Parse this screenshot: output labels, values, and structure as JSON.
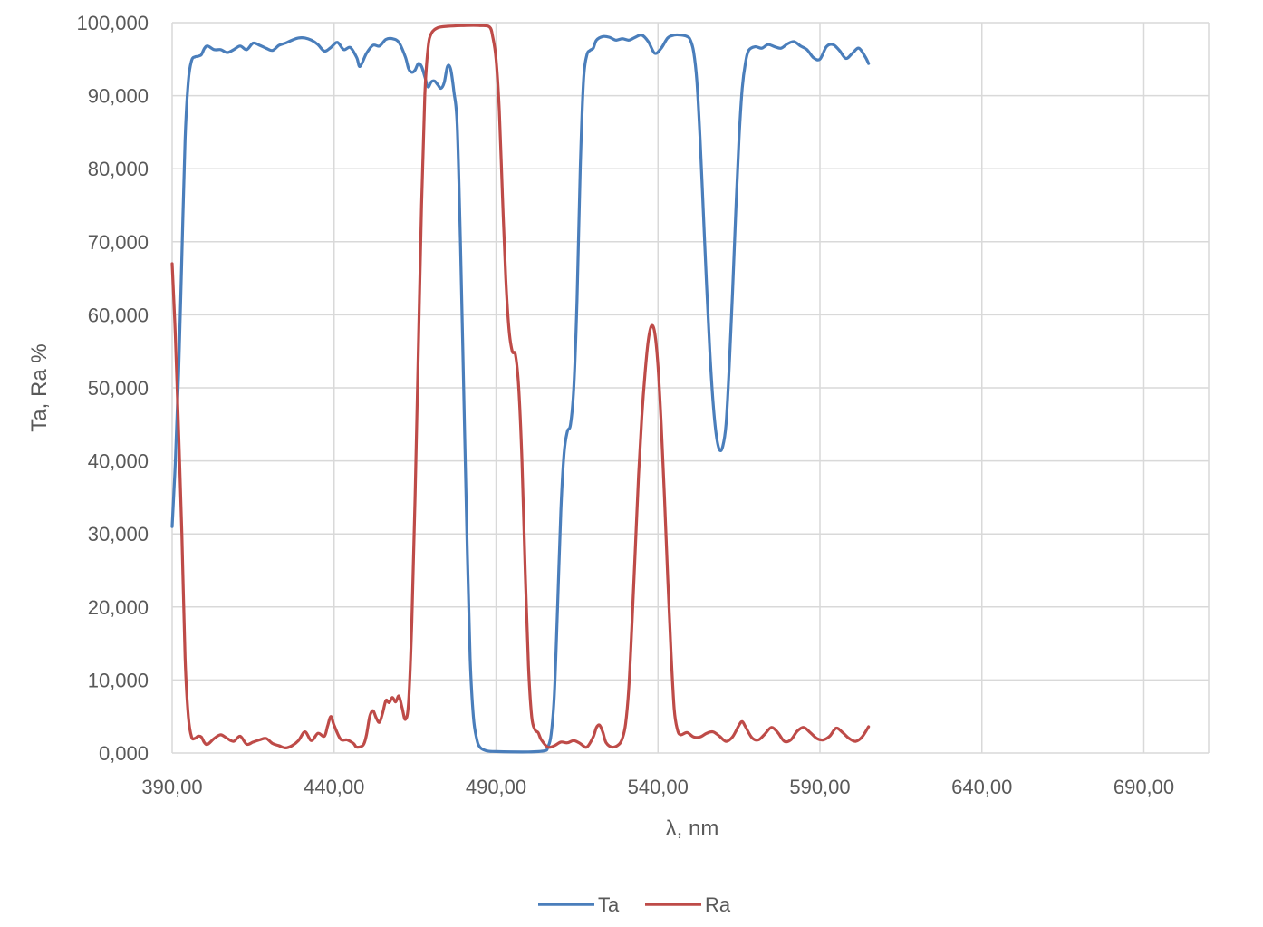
{
  "chart_data": {
    "type": "line",
    "title": "",
    "xlabel": "λ, nm",
    "ylabel": "Ta, Ra %",
    "xlim": [
      390,
      710
    ],
    "ylim": [
      0,
      100
    ],
    "x_ticks": [
      {
        "value": 390,
        "label": "390,00"
      },
      {
        "value": 440,
        "label": "440,00"
      },
      {
        "value": 490,
        "label": "490,00"
      },
      {
        "value": 540,
        "label": "540,00"
      },
      {
        "value": 590,
        "label": "590,00"
      },
      {
        "value": 640,
        "label": "640,00"
      },
      {
        "value": 690,
        "label": "690,00"
      }
    ],
    "y_ticks": [
      {
        "value": 0,
        "label": "0,000"
      },
      {
        "value": 10,
        "label": "10,000"
      },
      {
        "value": 20,
        "label": "20,000"
      },
      {
        "value": 30,
        "label": "30,000"
      },
      {
        "value": 40,
        "label": "40,000"
      },
      {
        "value": 50,
        "label": "50,000"
      },
      {
        "value": 60,
        "label": "60,000"
      },
      {
        "value": 70,
        "label": "70,000"
      },
      {
        "value": 80,
        "label": "80,000"
      },
      {
        "value": 90,
        "label": "90,000"
      },
      {
        "value": 100,
        "label": "100,000"
      }
    ],
    "grid": true,
    "legend_position": "bottom",
    "series": [
      {
        "name": "Ta",
        "color": "#4a7ebb",
        "points": [
          [
            390,
            31
          ],
          [
            391,
            40
          ],
          [
            392,
            52
          ],
          [
            393,
            68
          ],
          [
            394,
            84
          ],
          [
            395,
            92
          ],
          [
            396,
            94.8
          ],
          [
            397,
            95.3
          ],
          [
            398,
            95.4
          ],
          [
            399,
            95.6
          ],
          [
            400,
            96.5
          ],
          [
            401,
            96.8
          ],
          [
            403,
            96.3
          ],
          [
            405,
            96.3
          ],
          [
            407,
            95.9
          ],
          [
            409,
            96.3
          ],
          [
            411,
            96.8
          ],
          [
            413,
            96.3
          ],
          [
            415,
            97.2
          ],
          [
            417,
            96.9
          ],
          [
            419,
            96.5
          ],
          [
            421,
            96.2
          ],
          [
            423,
            96.9
          ],
          [
            425,
            97.2
          ],
          [
            427,
            97.6
          ],
          [
            429,
            97.9
          ],
          [
            431,
            97.9
          ],
          [
            433,
            97.6
          ],
          [
            435,
            97.0
          ],
          [
            437,
            96.1
          ],
          [
            439,
            96.6
          ],
          [
            441,
            97.3
          ],
          [
            443,
            96.3
          ],
          [
            445,
            96.6
          ],
          [
            447,
            95.2
          ],
          [
            448,
            94.0
          ],
          [
            450,
            95.8
          ],
          [
            452,
            96.9
          ],
          [
            454,
            96.8
          ],
          [
            456,
            97.7
          ],
          [
            458,
            97.8
          ],
          [
            460,
            97.3
          ],
          [
            462,
            95.3
          ],
          [
            463,
            93.7
          ],
          [
            464,
            93.2
          ],
          [
            465,
            93.5
          ],
          [
            466,
            94.4
          ],
          [
            467,
            94.0
          ],
          [
            468,
            92.6
          ],
          [
            469,
            91.2
          ],
          [
            470,
            91.9
          ],
          [
            471,
            92.0
          ],
          [
            472,
            91.5
          ],
          [
            473,
            91.0
          ],
          [
            474,
            91.8
          ],
          [
            475,
            94.0
          ],
          [
            476,
            93.6
          ],
          [
            477,
            90.5
          ],
          [
            478,
            86
          ],
          [
            479,
            70
          ],
          [
            480,
            50
          ],
          [
            481,
            30
          ],
          [
            482,
            13
          ],
          [
            483,
            5
          ],
          [
            484,
            2
          ],
          [
            485,
            0.8
          ],
          [
            487,
            0.3
          ],
          [
            490,
            0.2
          ],
          [
            500,
            0.15
          ],
          [
            505,
            0.3
          ],
          [
            506,
            0.8
          ],
          [
            507,
            2.5
          ],
          [
            508,
            8
          ],
          [
            509,
            20
          ],
          [
            510,
            33
          ],
          [
            511,
            41
          ],
          [
            512,
            44
          ],
          [
            513,
            45
          ],
          [
            514,
            50
          ],
          [
            515,
            62
          ],
          [
            516,
            80
          ],
          [
            517,
            92
          ],
          [
            518,
            95.5
          ],
          [
            519,
            96.2
          ],
          [
            520,
            96.5
          ],
          [
            521,
            97.6
          ],
          [
            523,
            98.1
          ],
          [
            525,
            98.0
          ],
          [
            527,
            97.6
          ],
          [
            529,
            97.8
          ],
          [
            531,
            97.6
          ],
          [
            533,
            98.0
          ],
          [
            535,
            98.3
          ],
          [
            537,
            97.4
          ],
          [
            539,
            95.8
          ],
          [
            541,
            96.5
          ],
          [
            543,
            97.9
          ],
          [
            545,
            98.3
          ],
          [
            547,
            98.3
          ],
          [
            549,
            98.1
          ],
          [
            550,
            97.6
          ],
          [
            551,
            96
          ],
          [
            552,
            92
          ],
          [
            553,
            84
          ],
          [
            554,
            74
          ],
          [
            555,
            64
          ],
          [
            556,
            55
          ],
          [
            557,
            48
          ],
          [
            558,
            43.5
          ],
          [
            559,
            41.5
          ],
          [
            560,
            42
          ],
          [
            561,
            45
          ],
          [
            562,
            53
          ],
          [
            563,
            63
          ],
          [
            564,
            74
          ],
          [
            565,
            84
          ],
          [
            566,
            91
          ],
          [
            567,
            94.5
          ],
          [
            568,
            96.2
          ],
          [
            570,
            96.7
          ],
          [
            572,
            96.5
          ],
          [
            574,
            97.0
          ],
          [
            576,
            96.7
          ],
          [
            578,
            96.5
          ],
          [
            580,
            97.1
          ],
          [
            582,
            97.4
          ],
          [
            584,
            96.8
          ],
          [
            586,
            96.3
          ],
          [
            588,
            95.2
          ],
          [
            590,
            95.0
          ],
          [
            592,
            96.7
          ],
          [
            594,
            97.0
          ],
          [
            596,
            96.2
          ],
          [
            598,
            95.1
          ],
          [
            600,
            95.8
          ],
          [
            602,
            96.5
          ],
          [
            604,
            95.3
          ],
          [
            605,
            94.4
          ]
        ]
      },
      {
        "name": "Ra",
        "color": "#be4b48",
        "points": [
          [
            390,
            67
          ],
          [
            391,
            57
          ],
          [
            392,
            44
          ],
          [
            393,
            30
          ],
          [
            394,
            13
          ],
          [
            395,
            5
          ],
          [
            396,
            2.2
          ],
          [
            397,
            2.0
          ],
          [
            398,
            2.3
          ],
          [
            399,
            2.2
          ],
          [
            400,
            1.4
          ],
          [
            401,
            1.2
          ],
          [
            403,
            2.0
          ],
          [
            405,
            2.5
          ],
          [
            407,
            2.0
          ],
          [
            409,
            1.6
          ],
          [
            411,
            2.3
          ],
          [
            413,
            1.2
          ],
          [
            415,
            1.5
          ],
          [
            417,
            1.8
          ],
          [
            419,
            2.0
          ],
          [
            421,
            1.3
          ],
          [
            423,
            1.0
          ],
          [
            425,
            0.7
          ],
          [
            427,
            1.0
          ],
          [
            429,
            1.7
          ],
          [
            431,
            2.9
          ],
          [
            433,
            1.7
          ],
          [
            435,
            2.7
          ],
          [
            437,
            2.3
          ],
          [
            438,
            3.7
          ],
          [
            439,
            5.0
          ],
          [
            440,
            3.8
          ],
          [
            442,
            1.9
          ],
          [
            444,
            1.8
          ],
          [
            446,
            1.3
          ],
          [
            447,
            0.8
          ],
          [
            449,
            1.1
          ],
          [
            450,
            2.5
          ],
          [
            451,
            5.0
          ],
          [
            452,
            5.8
          ],
          [
            453,
            4.8
          ],
          [
            454,
            4.2
          ],
          [
            455,
            5.5
          ],
          [
            456,
            7.2
          ],
          [
            457,
            6.9
          ],
          [
            458,
            7.6
          ],
          [
            459,
            7.0
          ],
          [
            460,
            7.8
          ],
          [
            461,
            6.2
          ],
          [
            462,
            4.6
          ],
          [
            463,
            7
          ],
          [
            464,
            18
          ],
          [
            465,
            35
          ],
          [
            466,
            55
          ],
          [
            467,
            75
          ],
          [
            468,
            90
          ],
          [
            469,
            96.5
          ],
          [
            470,
            98.5
          ],
          [
            472,
            99.3
          ],
          [
            475,
            99.5
          ],
          [
            480,
            99.6
          ],
          [
            485,
            99.6
          ],
          [
            488,
            99.4
          ],
          [
            489,
            98
          ],
          [
            490,
            95
          ],
          [
            491,
            88
          ],
          [
            492,
            76
          ],
          [
            493,
            65
          ],
          [
            494,
            58
          ],
          [
            495,
            55
          ],
          [
            496,
            54.5
          ],
          [
            497,
            50
          ],
          [
            498,
            40
          ],
          [
            499,
            25
          ],
          [
            500,
            12
          ],
          [
            501,
            5
          ],
          [
            502,
            3.2
          ],
          [
            503,
            2.8
          ],
          [
            504,
            1.8
          ],
          [
            506,
            0.8
          ],
          [
            508,
            1.0
          ],
          [
            510,
            1.5
          ],
          [
            512,
            1.4
          ],
          [
            514,
            1.7
          ],
          [
            516,
            1.3
          ],
          [
            518,
            0.8
          ],
          [
            520,
            2.2
          ],
          [
            521,
            3.5
          ],
          [
            522,
            3.8
          ],
          [
            523,
            2.8
          ],
          [
            524,
            1.4
          ],
          [
            526,
            0.8
          ],
          [
            528,
            1.2
          ],
          [
            529,
            2.0
          ],
          [
            530,
            4.0
          ],
          [
            531,
            9
          ],
          [
            532,
            18
          ],
          [
            533,
            28
          ],
          [
            534,
            38
          ],
          [
            535,
            46
          ],
          [
            536,
            52
          ],
          [
            537,
            56.5
          ],
          [
            538,
            58.5
          ],
          [
            539,
            57.5
          ],
          [
            540,
            53
          ],
          [
            541,
            45
          ],
          [
            542,
            35
          ],
          [
            543,
            24
          ],
          [
            544,
            14
          ],
          [
            545,
            6
          ],
          [
            546,
            3.2
          ],
          [
            547,
            2.5
          ],
          [
            549,
            2.8
          ],
          [
            551,
            2.2
          ],
          [
            553,
            2.2
          ],
          [
            555,
            2.7
          ],
          [
            557,
            2.9
          ],
          [
            559,
            2.3
          ],
          [
            561,
            1.6
          ],
          [
            563,
            2.2
          ],
          [
            565,
            3.8
          ],
          [
            566,
            4.3
          ],
          [
            567,
            3.6
          ],
          [
            569,
            2.1
          ],
          [
            571,
            1.8
          ],
          [
            573,
            2.6
          ],
          [
            575,
            3.5
          ],
          [
            577,
            2.8
          ],
          [
            579,
            1.6
          ],
          [
            581,
            1.8
          ],
          [
            583,
            3.0
          ],
          [
            585,
            3.5
          ],
          [
            587,
            2.8
          ],
          [
            589,
            2.0
          ],
          [
            591,
            1.8
          ],
          [
            593,
            2.3
          ],
          [
            595,
            3.4
          ],
          [
            597,
            2.8
          ],
          [
            599,
            2.0
          ],
          [
            601,
            1.6
          ],
          [
            603,
            2.2
          ],
          [
            605,
            3.6
          ]
        ]
      }
    ]
  }
}
